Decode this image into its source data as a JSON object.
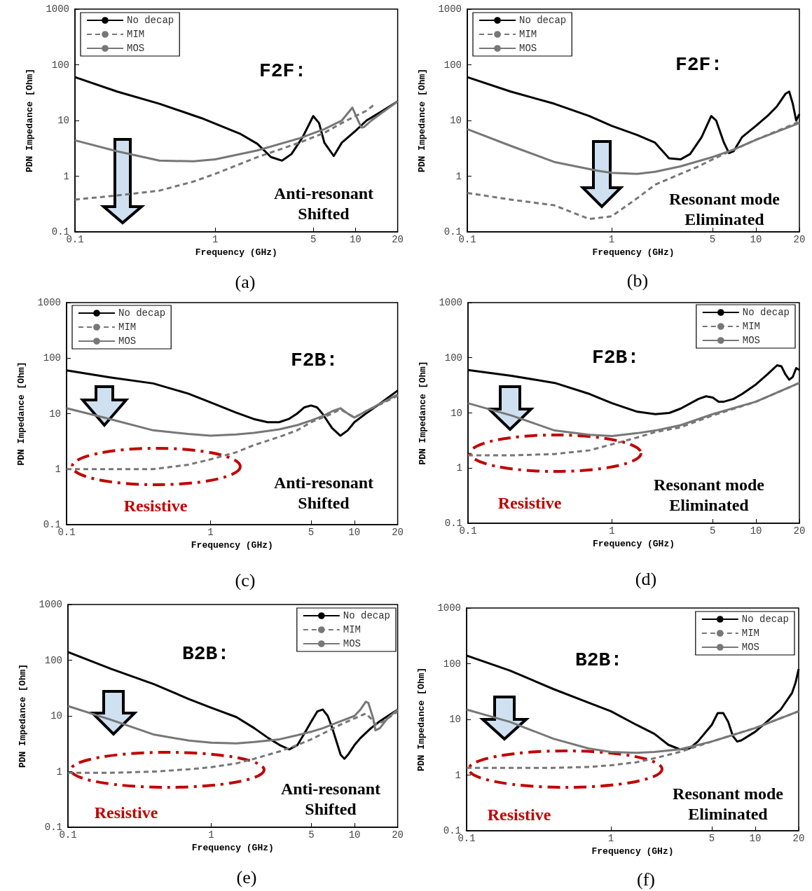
{
  "chart_data": [
    {
      "type": "line",
      "title": "F2F:",
      "xlabel": "Frequency (GHz)",
      "ylabel": "PDN Impedance [Ohm]",
      "log": "xy",
      "grid": false,
      "legend": "top left",
      "marker": "none",
      "xlim": [
        0.1,
        20
      ],
      "xticks": [
        0.1,
        1,
        5,
        10,
        20
      ],
      "ylim": [
        0.1,
        1000
      ],
      "yticks": [
        0.1,
        1,
        10,
        100,
        1000
      ],
      "annotations": [
        "(a)",
        "Anti-resonant\nShifted"
      ],
      "series": [
        {
          "name": "No decap",
          "color": "#000000",
          "line_style": "solid",
          "x": [
            0.1,
            0.2,
            0.4,
            0.8,
            1.5,
            2,
            2.5,
            3,
            3.5,
            4.2,
            5,
            5.5,
            6,
            7,
            8,
            10,
            12,
            15,
            20
          ],
          "values": [
            60,
            33,
            20,
            11,
            5.8,
            3.8,
            2.2,
            1.9,
            2.5,
            5,
            12,
            9,
            4,
            2.3,
            4,
            6.5,
            10,
            14,
            22
          ]
        },
        {
          "name": "MIM",
          "color": "#777777",
          "line_style": "dashed",
          "x": [
            0.1,
            0.2,
            0.4,
            0.7,
            1,
            2,
            4,
            6,
            8,
            10,
            12,
            13.5
          ],
          "values": [
            0.38,
            0.45,
            0.55,
            0.8,
            1.1,
            2.2,
            4,
            6,
            9,
            12,
            15,
            19
          ]
        },
        {
          "name": "MOS",
          "color": "#777777",
          "line_style": "solid",
          "x": [
            0.1,
            0.2,
            0.4,
            0.7,
            1,
            2,
            4,
            6,
            8,
            9.5,
            11,
            11.5,
            13,
            20
          ],
          "values": [
            4.4,
            2.8,
            1.9,
            1.85,
            2,
            2.9,
            4.8,
            7,
            10,
            17,
            7.5,
            7.6,
            10,
            22
          ]
        }
      ]
    },
    {
      "type": "line",
      "title": "F2F:",
      "xlabel": "Frequency (GHz)",
      "ylabel": "PDN Impedance [Ohm]",
      "log": "xy",
      "grid": false,
      "legend": "top left",
      "marker": "none",
      "xlim": [
        0.1,
        20
      ],
      "xticks": [
        0.1,
        1,
        5,
        10,
        20
      ],
      "ylim": [
        0.1,
        1000
      ],
      "yticks": [
        0.1,
        1,
        10,
        100,
        1000
      ],
      "annotations": [
        "(b)",
        "Resonant mode\nEliminated"
      ],
      "series": [
        {
          "name": "No decap",
          "color": "#000000",
          "line_style": "solid",
          "x": [
            0.1,
            0.2,
            0.4,
            0.7,
            1,
            1.5,
            2,
            2.5,
            3,
            3.5,
            4.2,
            4.9,
            5.3,
            6,
            6.5,
            7,
            8,
            10,
            12,
            14,
            16,
            17,
            18,
            19,
            20
          ],
          "values": [
            60,
            33,
            20,
            12,
            8,
            5.5,
            4,
            2.1,
            2,
            2.5,
            5,
            12,
            10,
            4,
            2.6,
            2.8,
            5,
            8,
            12,
            18,
            30,
            33,
            20,
            10,
            13
          ]
        },
        {
          "name": "MIM",
          "color": "#777777",
          "line_style": "dashed",
          "x": [
            0.1,
            0.2,
            0.4,
            0.7,
            1,
            1.5,
            2,
            3,
            4,
            5,
            7,
            10,
            20
          ],
          "values": [
            0.5,
            0.38,
            0.3,
            0.17,
            0.19,
            0.4,
            0.7,
            1.1,
            1.5,
            2,
            3,
            4.5,
            9.5
          ]
        },
        {
          "name": "MOS",
          "color": "#777777",
          "line_style": "solid",
          "x": [
            0.1,
            0.2,
            0.4,
            0.8,
            1,
            1.5,
            2,
            3,
            5,
            7,
            10,
            20
          ],
          "values": [
            7,
            3.5,
            1.8,
            1.25,
            1.15,
            1.1,
            1.2,
            1.5,
            2.2,
            3,
            4.5,
            9
          ]
        }
      ]
    },
    {
      "type": "line",
      "title": "F2B:",
      "xlabel": "Frequency (GHz)",
      "ylabel": "PDN Impedance [Ohm]",
      "log": "xy",
      "grid": false,
      "legend": "top left",
      "marker": "none",
      "xlim": [
        0.1,
        20
      ],
      "xticks": [
        0.1,
        1,
        5,
        10,
        20
      ],
      "ylim": [
        0.1,
        1000
      ],
      "yticks": [
        0.1,
        1,
        10,
        100,
        1000
      ],
      "annotations": [
        "(c)",
        "Anti-resonant\nShifted",
        "Resistive"
      ],
      "series": [
        {
          "name": "No decap",
          "color": "#000000",
          "line_style": "solid",
          "x": [
            0.1,
            0.2,
            0.4,
            0.7,
            1,
            1.5,
            2,
            2.5,
            3,
            3.5,
            4,
            4.5,
            5,
            5.5,
            6,
            7,
            8,
            9,
            10,
            12,
            15,
            20
          ],
          "values": [
            60,
            45,
            35,
            23,
            16,
            10.5,
            8,
            7,
            7,
            8,
            10,
            13,
            14,
            13,
            10,
            5.5,
            4,
            5,
            7,
            10,
            15,
            26
          ]
        },
        {
          "name": "MIM",
          "color": "#777777",
          "line_style": "dashed",
          "x": [
            0.1,
            0.2,
            0.4,
            0.7,
            1,
            1.5,
            2,
            3,
            4,
            5,
            7,
            8,
            9,
            10,
            12,
            20
          ],
          "values": [
            1,
            1,
            1,
            1.2,
            1.5,
            2,
            2.7,
            3.8,
            5,
            7,
            10,
            12,
            10,
            8.5,
            11,
            21
          ]
        },
        {
          "name": "MOS",
          "color": "#777777",
          "line_style": "solid",
          "x": [
            0.1,
            0.2,
            0.4,
            0.7,
            1,
            1.5,
            2,
            3,
            4,
            5,
            6,
            7,
            8,
            9,
            10,
            12,
            15,
            20
          ],
          "values": [
            12.5,
            8,
            5,
            4.3,
            4,
            4.2,
            4.5,
            5.2,
            6.2,
            7.5,
            9,
            11,
            12.5,
            10,
            8.5,
            11,
            15,
            22
          ]
        }
      ]
    },
    {
      "type": "line",
      "title": "F2B:",
      "xlabel": "Frequency (GHz)",
      "ylabel": "PDN Impedance [Ohm]",
      "log": "xy",
      "grid": false,
      "legend": "top right",
      "marker": "none",
      "xlim": [
        0.1,
        20
      ],
      "xticks": [
        0.1,
        1,
        5,
        10,
        20
      ],
      "ylim": [
        0.1,
        1000
      ],
      "yticks": [
        0.1,
        1,
        10,
        100,
        1000
      ],
      "annotations": [
        "(d)",
        "Resonant mode\nEliminated",
        "Resistive"
      ],
      "series": [
        {
          "name": "No decap",
          "color": "#000000",
          "line_style": "solid",
          "x": [
            0.1,
            0.2,
            0.4,
            0.7,
            1,
            1.5,
            2,
            2.5,
            3,
            4,
            4.5,
            5,
            5.5,
            6,
            7,
            8,
            10,
            12,
            14,
            15,
            16,
            17,
            18,
            19,
            20
          ],
          "values": [
            60,
            47,
            35,
            22,
            15,
            10.5,
            9.5,
            10,
            12,
            18,
            20,
            19,
            16,
            16,
            18,
            22,
            33,
            50,
            73,
            70,
            50,
            40,
            45,
            65,
            60
          ]
        },
        {
          "name": "MIM",
          "color": "#777777",
          "line_style": "dashed",
          "x": [
            0.1,
            0.2,
            0.4,
            0.7,
            1,
            1.5,
            2,
            3,
            5,
            10,
            20
          ],
          "values": [
            1.7,
            1.7,
            1.8,
            2.1,
            2.7,
            3.6,
            4.5,
            5.5,
            9,
            16,
            35
          ]
        },
        {
          "name": "MOS",
          "color": "#777777",
          "line_style": "solid",
          "x": [
            0.1,
            0.2,
            0.4,
            0.7,
            1,
            1.5,
            2,
            3,
            5,
            10,
            20
          ],
          "values": [
            15,
            9,
            4.8,
            4,
            3.8,
            4.3,
            4.8,
            6,
            9.5,
            16,
            35
          ]
        }
      ]
    },
    {
      "type": "line",
      "title": "B2B:",
      "xlabel": "Frequency (GHz)",
      "ylabel": "PDN Impedance [Ohm]",
      "log": "xy",
      "grid": false,
      "legend": "top right",
      "marker": "none",
      "xlim": [
        0.1,
        20
      ],
      "xticks": [
        0.1,
        1,
        5,
        10,
        20
      ],
      "ylim": [
        0.1,
        1000
      ],
      "yticks": [
        0.1,
        1,
        10,
        100,
        1000
      ],
      "annotations": [
        "(e)",
        "Anti-resonant\nShifted",
        "Resistive"
      ],
      "series": [
        {
          "name": "No decap",
          "color": "#000000",
          "line_style": "solid",
          "x": [
            0.1,
            0.2,
            0.4,
            0.7,
            1,
            1.5,
            2,
            2.5,
            3,
            3.5,
            4,
            4.5,
            5,
            5.5,
            6,
            6.5,
            7,
            8,
            8.5,
            9,
            10,
            11,
            13,
            15,
            20
          ],
          "values": [
            140,
            70,
            37,
            20,
            14,
            9.5,
            6,
            4,
            3,
            2.5,
            3,
            5,
            8,
            12,
            13,
            10,
            6,
            2,
            1.7,
            2,
            3,
            4,
            6,
            8,
            13
          ]
        },
        {
          "name": "MIM",
          "color": "#777777",
          "line_style": "dashed",
          "x": [
            0.1,
            0.2,
            0.4,
            0.7,
            1,
            1.5,
            2,
            3,
            4,
            5,
            6,
            8,
            10,
            12,
            13,
            14,
            16,
            20
          ],
          "values": [
            0.95,
            0.95,
            1,
            1.1,
            1.2,
            1.4,
            1.7,
            2.3,
            3,
            3.8,
            4.8,
            7,
            9,
            11,
            9,
            7,
            8,
            12
          ]
        },
        {
          "name": "MOS",
          "color": "#777777",
          "line_style": "solid",
          "x": [
            0.1,
            0.2,
            0.4,
            0.7,
            1,
            1.5,
            2,
            3,
            4,
            5,
            6,
            8,
            10,
            11,
            12,
            12.5,
            13.5,
            14,
            15,
            17,
            20
          ],
          "values": [
            15,
            8.5,
            4.6,
            3.6,
            3.3,
            3.2,
            3.4,
            3.8,
            4.5,
            5.2,
            6,
            8,
            10,
            13,
            18,
            17,
            9,
            5.5,
            6,
            9,
            13
          ]
        }
      ]
    },
    {
      "type": "line",
      "title": "B2B:",
      "xlabel": "Frequency (GHz)",
      "ylabel": "PDN Impedance [Ohm]",
      "log": "xy",
      "grid": false,
      "legend": "top right",
      "marker": "none",
      "xlim": [
        0.1,
        20
      ],
      "xticks": [
        0.1,
        1,
        5,
        10,
        20
      ],
      "ylim": [
        0.1,
        1000
      ],
      "yticks": [
        0.1,
        1,
        10,
        100,
        1000
      ],
      "annotations": [
        "(f)",
        "Resonant mode\nEliminated",
        "Resistive"
      ],
      "series": [
        {
          "name": "No decap",
          "color": "#000000",
          "line_style": "solid",
          "x": [
            0.1,
            0.2,
            0.4,
            0.7,
            1,
            1.5,
            2,
            2.5,
            3,
            3.5,
            4,
            5,
            5.5,
            6,
            6.5,
            7,
            7.5,
            8,
            10,
            12,
            15,
            18,
            19,
            20
          ],
          "values": [
            140,
            75,
            35,
            20,
            14,
            8,
            5.5,
            3.5,
            2.9,
            3,
            4,
            8,
            13,
            13,
            9,
            5,
            4,
            4.2,
            6,
            9,
            15,
            30,
            45,
            80
          ]
        },
        {
          "name": "MIM",
          "color": "#777777",
          "line_style": "dashed",
          "x": [
            0.1,
            0.2,
            0.4,
            0.7,
            1,
            1.5,
            2,
            3,
            5,
            10,
            20
          ],
          "values": [
            1.35,
            1.35,
            1.35,
            1.4,
            1.5,
            1.7,
            2,
            2.6,
            4,
            7,
            14
          ]
        },
        {
          "name": "MOS",
          "color": "#777777",
          "line_style": "solid",
          "x": [
            0.1,
            0.2,
            0.4,
            0.7,
            1,
            1.5,
            2,
            3,
            5,
            10,
            20
          ],
          "values": [
            15,
            9,
            4.5,
            3,
            2.6,
            2.5,
            2.6,
            2.9,
            4,
            7,
            14
          ]
        }
      ]
    }
  ]
}
